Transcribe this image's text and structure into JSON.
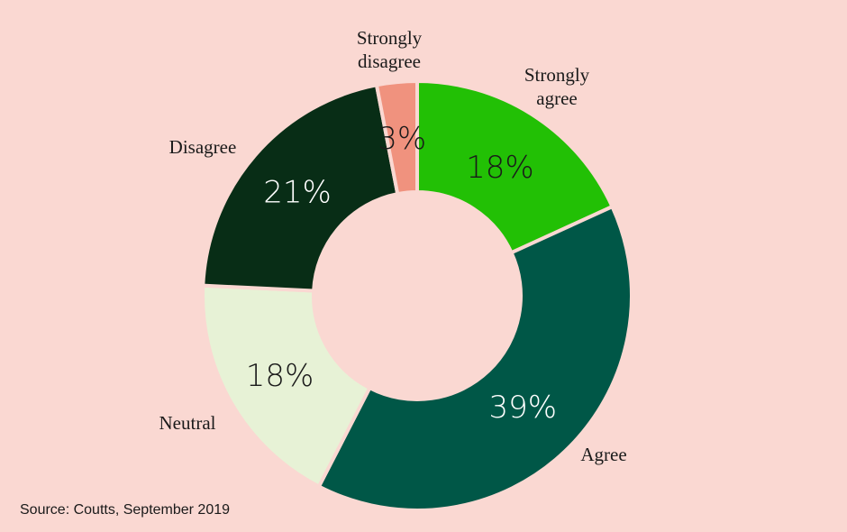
{
  "chart_data": {
    "type": "pie",
    "style": "donut",
    "categories": [
      "Strongly agree",
      "Agree",
      "Neutral",
      "Disagree",
      "Strongly disagree"
    ],
    "label_lines": [
      [
        "Strongly",
        "agree"
      ],
      [
        "Agree"
      ],
      [
        "Neutral"
      ],
      [
        "Disagree"
      ],
      [
        "Strongly",
        "disagree"
      ]
    ],
    "values": [
      18,
      39,
      18,
      21,
      3
    ],
    "value_labels": [
      "18%",
      "39%",
      "18%",
      "21%",
      "3%"
    ],
    "colors": [
      "#22c005",
      "#005747",
      "#e7f2d6",
      "#082d16",
      "#f0927e"
    ],
    "label_colors": [
      "#1a1a1a",
      "#ffffff",
      "#1a1a1a",
      "#ffffff",
      "#1a1a1a"
    ],
    "background": "#fad8d2",
    "legend": "none"
  },
  "source": "Source: Coutts, September 2019"
}
